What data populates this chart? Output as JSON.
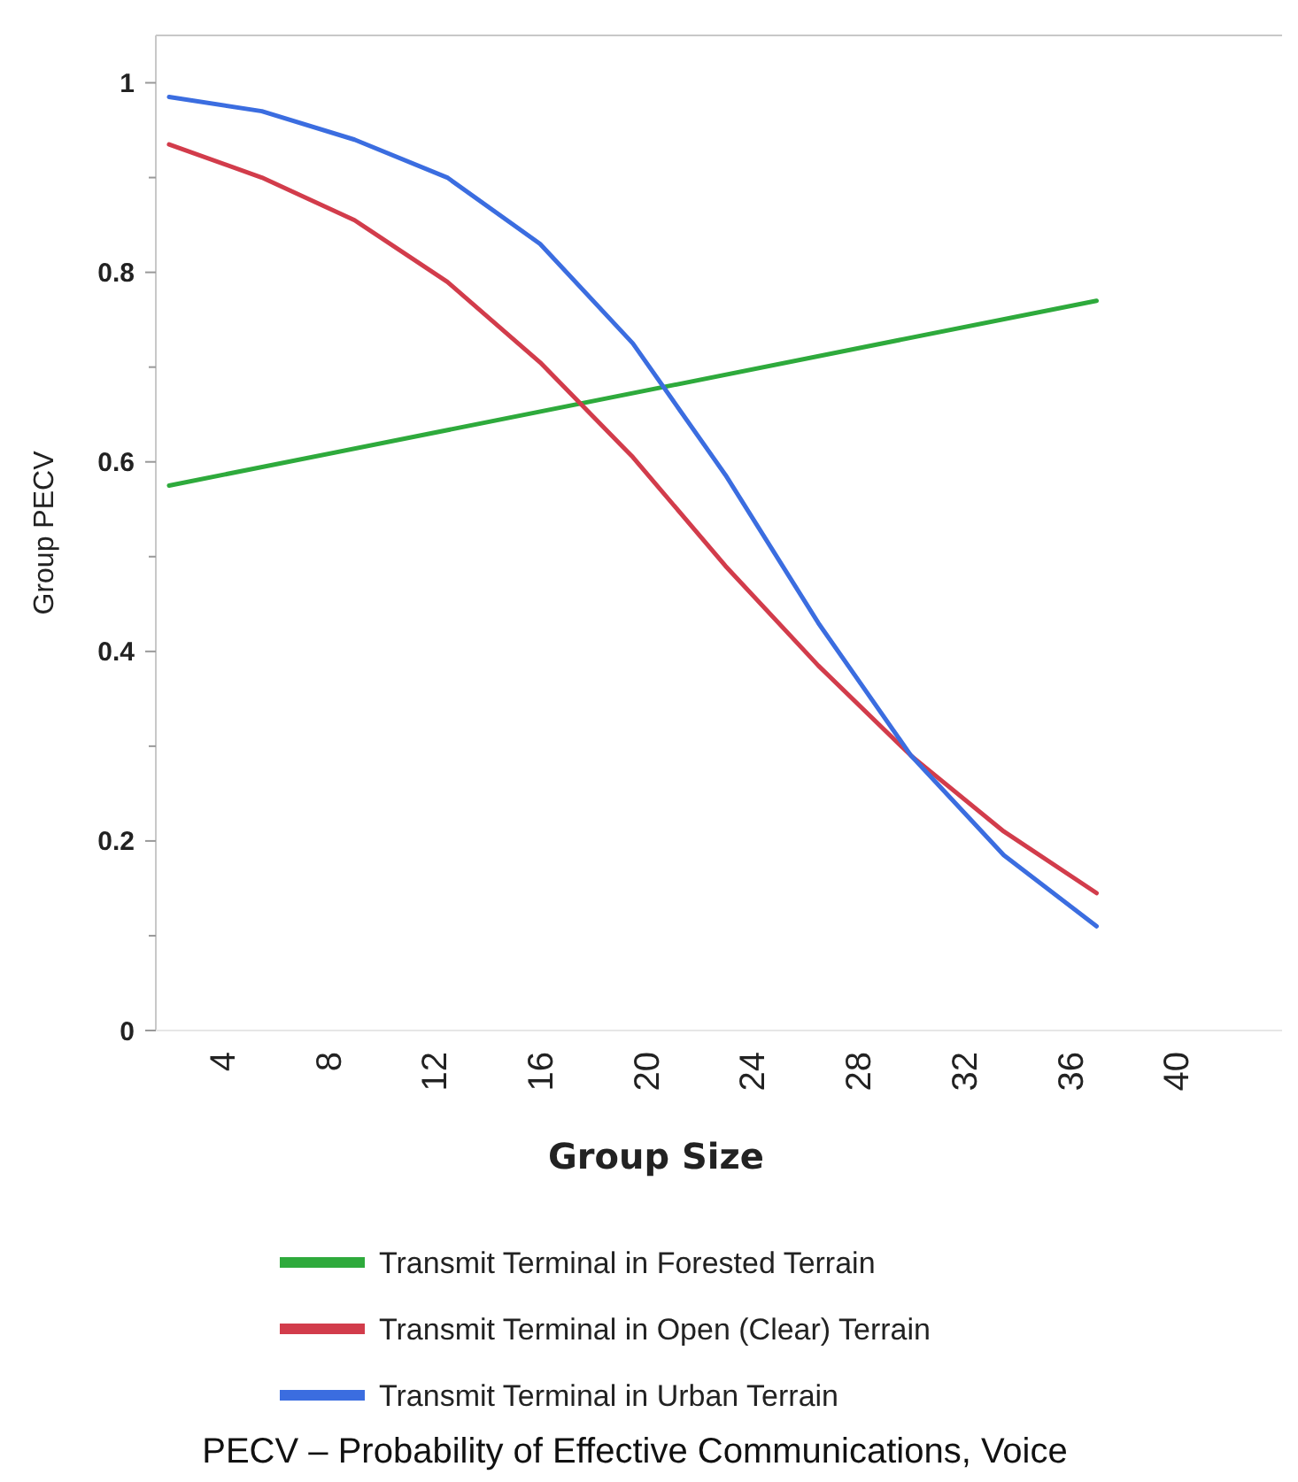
{
  "chart_data": {
    "type": "line",
    "xlabel": "Group Size",
    "ylabel": "Group PECV",
    "annotations": [
      "PECV – Probability of Effective Communications, Voice"
    ],
    "xlim": [
      1.5,
      44
    ],
    "xticks": [
      4,
      8,
      12,
      16,
      20,
      24,
      28,
      32,
      36,
      40
    ],
    "ylim": [
      0,
      1.05
    ],
    "yticks": [
      0,
      {
        "value": 0.1,
        "label": null
      },
      0.2,
      {
        "value": 0.3,
        "label": null
      },
      0.4,
      {
        "value": 0.5,
        "label": null
      },
      0.6,
      {
        "value": 0.7,
        "label": null
      },
      0.8,
      {
        "value": 0.9,
        "label": null
      },
      1
    ],
    "grid": false,
    "legend": "bottom",
    "marker": "none",
    "line_style": "solid",
    "series": [
      {
        "name": "Transmit Terminal in Forested Terrain",
        "color": "#2eaa3c",
        "x": [
          2,
          37
        ],
        "values": [
          0.575,
          0.77
        ]
      },
      {
        "name": "Transmit Terminal in Open (Clear) Terrain",
        "color": "#d23c4b",
        "x": [
          2,
          5.5,
          9,
          12.5,
          16,
          19.5,
          23,
          26.5,
          30,
          33.5,
          37
        ],
        "values": [
          0.935,
          0.9,
          0.855,
          0.79,
          0.705,
          0.605,
          0.49,
          0.385,
          0.29,
          0.21,
          0.145
        ]
      },
      {
        "name": "Transmit Terminal in Urban Terrain",
        "color": "#3b6de0",
        "x": [
          2,
          5.5,
          9,
          12.5,
          16,
          19.5,
          23,
          26.5,
          30,
          33.5,
          37
        ],
        "values": [
          0.985,
          0.97,
          0.94,
          0.9,
          0.83,
          0.725,
          0.586,
          0.43,
          0.29,
          0.185,
          0.11
        ]
      }
    ]
  }
}
